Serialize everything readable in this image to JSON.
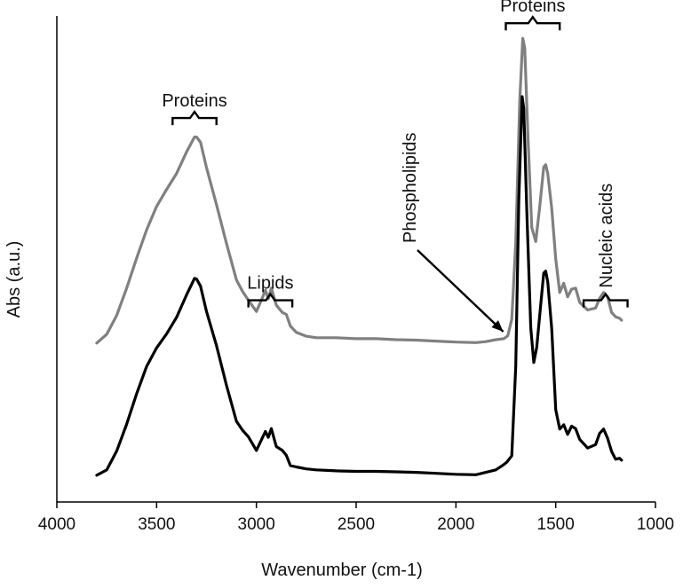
{
  "chart_data": {
    "type": "line",
    "title": "",
    "xlabel": "Wavenumber (cm-1)",
    "ylabel": "Abs (a.u.)",
    "xlim": [
      4000,
      1000
    ],
    "x_reversed": true,
    "ylim": [
      0,
      1
    ],
    "y_ticks_shown": false,
    "grid": false,
    "x_ticks": [
      4000,
      3500,
      3000,
      2500,
      2000,
      1500,
      1000
    ],
    "x_tick_labels": [
      "4000",
      "3500",
      "3000",
      "2500",
      "2000",
      "1500",
      "1000"
    ],
    "series": [
      {
        "color": "#808080",
        "points": [
          [
            3800,
            0.327
          ],
          [
            3750,
            0.345
          ],
          [
            3700,
            0.384
          ],
          [
            3650,
            0.44
          ],
          [
            3600,
            0.502
          ],
          [
            3550,
            0.56
          ],
          [
            3500,
            0.608
          ],
          [
            3450,
            0.643
          ],
          [
            3400,
            0.676
          ],
          [
            3350,
            0.72
          ],
          [
            3310,
            0.751
          ],
          [
            3300,
            0.751
          ],
          [
            3280,
            0.74
          ],
          [
            3250,
            0.688
          ],
          [
            3200,
            0.612
          ],
          [
            3150,
            0.532
          ],
          [
            3100,
            0.457
          ],
          [
            3070,
            0.434
          ],
          [
            3040,
            0.415
          ],
          [
            3000,
            0.392
          ],
          [
            2970,
            0.42
          ],
          [
            2955,
            0.436
          ],
          [
            2940,
            0.418
          ],
          [
            2925,
            0.44
          ],
          [
            2900,
            0.405
          ],
          [
            2870,
            0.39
          ],
          [
            2850,
            0.386
          ],
          [
            2830,
            0.362
          ],
          [
            2800,
            0.349
          ],
          [
            2750,
            0.341
          ],
          [
            2700,
            0.338
          ],
          [
            2600,
            0.338
          ],
          [
            2500,
            0.336
          ],
          [
            2400,
            0.336
          ],
          [
            2300,
            0.334
          ],
          [
            2200,
            0.333
          ],
          [
            2100,
            0.331
          ],
          [
            2000,
            0.329
          ],
          [
            1900,
            0.328
          ],
          [
            1850,
            0.33
          ],
          [
            1800,
            0.334
          ],
          [
            1760,
            0.336
          ],
          [
            1740,
            0.342
          ],
          [
            1720,
            0.376
          ],
          [
            1700,
            0.534
          ],
          [
            1680,
            0.826
          ],
          [
            1665,
            0.954
          ],
          [
            1655,
            0.934
          ],
          [
            1640,
            0.762
          ],
          [
            1620,
            0.565
          ],
          [
            1600,
            0.536
          ],
          [
            1580,
            0.608
          ],
          [
            1560,
            0.689
          ],
          [
            1550,
            0.694
          ],
          [
            1540,
            0.676
          ],
          [
            1520,
            0.604
          ],
          [
            1500,
            0.5
          ],
          [
            1480,
            0.431
          ],
          [
            1460,
            0.45
          ],
          [
            1440,
            0.422
          ],
          [
            1420,
            0.438
          ],
          [
            1400,
            0.44
          ],
          [
            1380,
            0.411
          ],
          [
            1340,
            0.395
          ],
          [
            1300,
            0.399
          ],
          [
            1280,
            0.419
          ],
          [
            1260,
            0.431
          ],
          [
            1240,
            0.422
          ],
          [
            1220,
            0.39
          ],
          [
            1200,
            0.381
          ],
          [
            1180,
            0.378
          ],
          [
            1170,
            0.374
          ]
        ]
      },
      {
        "color": "#000000",
        "points": [
          [
            3800,
            0.055
          ],
          [
            3750,
            0.066
          ],
          [
            3700,
            0.105
          ],
          [
            3650,
            0.16
          ],
          [
            3600,
            0.223
          ],
          [
            3550,
            0.279
          ],
          [
            3500,
            0.317
          ],
          [
            3450,
            0.346
          ],
          [
            3400,
            0.38
          ],
          [
            3350,
            0.426
          ],
          [
            3310,
            0.46
          ],
          [
            3300,
            0.459
          ],
          [
            3280,
            0.444
          ],
          [
            3250,
            0.392
          ],
          [
            3200,
            0.322
          ],
          [
            3150,
            0.24
          ],
          [
            3100,
            0.166
          ],
          [
            3070,
            0.148
          ],
          [
            3040,
            0.134
          ],
          [
            3000,
            0.106
          ],
          [
            2970,
            0.132
          ],
          [
            2955,
            0.145
          ],
          [
            2940,
            0.133
          ],
          [
            2925,
            0.151
          ],
          [
            2900,
            0.114
          ],
          [
            2870,
            0.106
          ],
          [
            2850,
            0.096
          ],
          [
            2830,
            0.075
          ],
          [
            2800,
            0.072
          ],
          [
            2750,
            0.068
          ],
          [
            2700,
            0.066
          ],
          [
            2600,
            0.064
          ],
          [
            2500,
            0.063
          ],
          [
            2400,
            0.063
          ],
          [
            2300,
            0.062
          ],
          [
            2200,
            0.061
          ],
          [
            2100,
            0.059
          ],
          [
            2000,
            0.057
          ],
          [
            1900,
            0.056
          ],
          [
            1800,
            0.066
          ],
          [
            1760,
            0.077
          ],
          [
            1745,
            0.082
          ],
          [
            1720,
            0.095
          ],
          [
            1700,
            0.28
          ],
          [
            1685,
            0.62
          ],
          [
            1668,
            0.834
          ],
          [
            1660,
            0.81
          ],
          [
            1645,
            0.6
          ],
          [
            1625,
            0.358
          ],
          [
            1610,
            0.287
          ],
          [
            1595,
            0.318
          ],
          [
            1575,
            0.406
          ],
          [
            1560,
            0.471
          ],
          [
            1550,
            0.475
          ],
          [
            1540,
            0.453
          ],
          [
            1520,
            0.356
          ],
          [
            1500,
            0.19
          ],
          [
            1480,
            0.15
          ],
          [
            1460,
            0.159
          ],
          [
            1440,
            0.139
          ],
          [
            1420,
            0.156
          ],
          [
            1400,
            0.151
          ],
          [
            1380,
            0.129
          ],
          [
            1340,
            0.111
          ],
          [
            1300,
            0.118
          ],
          [
            1280,
            0.141
          ],
          [
            1260,
            0.15
          ],
          [
            1240,
            0.131
          ],
          [
            1220,
            0.104
          ],
          [
            1200,
            0.088
          ],
          [
            1180,
            0.09
          ],
          [
            1170,
            0.086
          ]
        ]
      }
    ],
    "annotations": [
      {
        "text": "Proteins",
        "x_range": [
          3420,
          3200
        ],
        "level": 0.79,
        "rotation": 0
      },
      {
        "text": "Lipids",
        "x_range": [
          3040,
          2820
        ],
        "level": 0.415,
        "rotation": 0
      },
      {
        "text": "Proteins",
        "x_range": [
          1750,
          1480
        ],
        "level": 0.985,
        "rotation": 0
      },
      {
        "text": "Nucleic acids",
        "x_range": [
          1360,
          1140
        ],
        "level": 0.415,
        "rotation": -90
      },
      {
        "text": "Phospholipids",
        "arrow_to": [
          1745,
          0.343
        ],
        "rotation": -90
      }
    ]
  }
}
